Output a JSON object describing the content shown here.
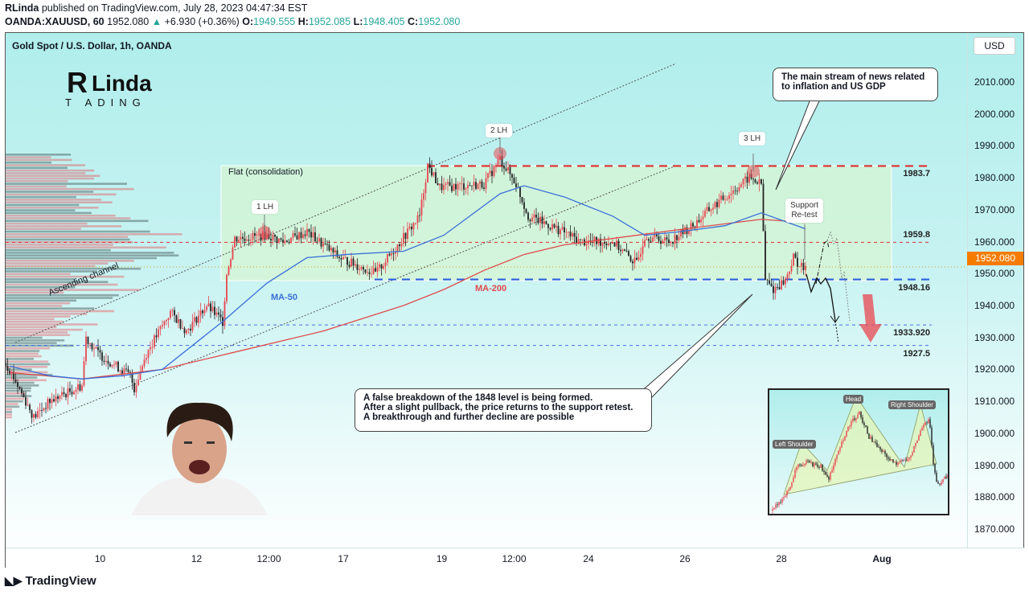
{
  "header": {
    "author": "RLinda",
    "published": "published on TradingView.com, July 28, 2023 04:47:34 EST",
    "symbol": "OANDA:XAUUSD, 60",
    "last": "1952.080",
    "change": "+6.930 (+0.36%)",
    "o_label": "O:",
    "o": "1949.555",
    "h_label": "H:",
    "h": "1952.085",
    "l_label": "L:",
    "l": "1948.405",
    "c_label": "C:",
    "c": "1952.080"
  },
  "chart_title": "Gold Spot / U.S. Dollar, 1h, OANDA",
  "currency": "USD",
  "current_price_label": "1952.080",
  "logo_text": "RLinda TRADING",
  "footer_brand": "TradingView",
  "colors": {
    "up": "#e8454f",
    "down": "#222222",
    "ma50": "#3a6fd8",
    "ma200": "#e04a4a",
    "accent": "#f57c00"
  },
  "annotations": {
    "flat": "Flat (consolidation)",
    "lh1": "1 LH",
    "lh2": "2 LH",
    "lh3": "3 LH",
    "support1": "Support",
    "support2": "Re-test",
    "channel": "Ascending channel",
    "ma50": "MA-50",
    "ma200": "MA-200",
    "news1": "The main stream of news related",
    "news2": "to inflation and US GDP",
    "breakdown1": "A false breakdown of the 1848 level is being formed.",
    "breakdown2": "After a slight pullback, the price returns to the support retest.",
    "breakdown3": "A breakthrough and further decline are possible",
    "inset_left": "Left Shoulder",
    "inset_head": "Head",
    "inset_right": "Right Shoulder"
  },
  "chart_data": {
    "type": "candlestick",
    "title": "Gold Spot / U.S. Dollar, 1h, OANDA",
    "ylim": [
      1865,
      2018
    ],
    "y_ticks": [
      "2010.000",
      "2000.000",
      "1990.000",
      "1980.000",
      "1970.000",
      "1960.000",
      "1950.000",
      "1940.000",
      "1930.000",
      "1920.000",
      "1910.000",
      "1900.000",
      "1890.000",
      "1880.000",
      "1870.000"
    ],
    "y_tick_values": [
      2010,
      2000,
      1990,
      1980,
      1970,
      1960,
      1950,
      1940,
      1930,
      1920,
      1910,
      1900,
      1890,
      1880,
      1870
    ],
    "x_ticks": [
      {
        "label": "10",
        "bar": 47,
        "bold": false
      },
      {
        "label": "12",
        "bar": 95,
        "bold": false
      },
      {
        "label": "12:00",
        "bar": 131,
        "bold": false
      },
      {
        "label": "17",
        "bar": 168,
        "bold": false
      },
      {
        "label": "19",
        "bar": 217,
        "bold": false
      },
      {
        "label": "12:00",
        "bar": 253,
        "bold": false
      },
      {
        "label": "24",
        "bar": 290,
        "bold": false
      },
      {
        "label": "26",
        "bar": 338,
        "bold": false
      },
      {
        "label": "28",
        "bar": 386,
        "bold": false
      },
      {
        "label": "Aug",
        "bar": 436,
        "bold": true
      }
    ],
    "price_path": [
      [
        0,
        1922
      ],
      [
        2,
        1920
      ],
      [
        14,
        1905
      ],
      [
        22,
        1910
      ],
      [
        38,
        1915
      ],
      [
        40,
        1930
      ],
      [
        46,
        1925
      ],
      [
        62,
        1918
      ],
      [
        64,
        1914
      ],
      [
        70,
        1925
      ],
      [
        82,
        1938
      ],
      [
        90,
        1932
      ],
      [
        100,
        1940
      ],
      [
        108,
        1935
      ],
      [
        110,
        1950
      ],
      [
        114,
        1961
      ],
      [
        130,
        1962
      ],
      [
        138,
        1960
      ],
      [
        150,
        1963
      ],
      [
        166,
        1955
      ],
      [
        184,
        1950
      ],
      [
        194,
        1958
      ],
      [
        206,
        1968
      ],
      [
        210,
        1984
      ],
      [
        216,
        1977
      ],
      [
        238,
        1978
      ],
      [
        246,
        1986
      ],
      [
        254,
        1978
      ],
      [
        260,
        1968
      ],
      [
        278,
        1963
      ],
      [
        286,
        1960
      ],
      [
        302,
        1960
      ],
      [
        314,
        1953
      ],
      [
        318,
        1962
      ],
      [
        330,
        1960
      ],
      [
        342,
        1965
      ],
      [
        350,
        1970
      ],
      [
        360,
        1975
      ],
      [
        370,
        1980
      ],
      [
        376,
        1978
      ],
      [
        378,
        1948
      ],
      [
        382,
        1945
      ],
      [
        388,
        1948
      ],
      [
        392,
        1955
      ],
      [
        396,
        1952
      ],
      [
        398,
        1951
      ]
    ],
    "ma50": [
      [
        2,
        1921
      ],
      [
        22,
        1918
      ],
      [
        38,
        1917
      ],
      [
        58,
        1918
      ],
      [
        78,
        1920
      ],
      [
        98,
        1930
      ],
      [
        108,
        1935
      ],
      [
        130,
        1947
      ],
      [
        150,
        1955
      ],
      [
        170,
        1956
      ],
      [
        198,
        1957
      ],
      [
        218,
        1962
      ],
      [
        246,
        1975
      ],
      [
        258,
        1977.5
      ],
      [
        278,
        1974
      ],
      [
        302,
        1968
      ],
      [
        318,
        1962
      ],
      [
        334,
        1963
      ],
      [
        358,
        1965
      ],
      [
        376,
        1969
      ],
      [
        398,
        1964
      ]
    ],
    "ma200": [
      [
        2,
        1919
      ],
      [
        38,
        1917
      ],
      [
        78,
        1920
      ],
      [
        118,
        1926
      ],
      [
        158,
        1932
      ],
      [
        198,
        1940
      ],
      [
        218,
        1945
      ],
      [
        238,
        1951
      ],
      [
        258,
        1956
      ],
      [
        278,
        1959
      ],
      [
        302,
        1961
      ],
      [
        338,
        1964
      ],
      [
        376,
        1967
      ],
      [
        398,
        1966
      ]
    ],
    "levels": [
      {
        "label": "1983.7",
        "value": 1983.7,
        "color": "#e03030",
        "style": "dashed-thick"
      },
      {
        "label": "1959.8",
        "value": 1959.8,
        "color": "#e03030",
        "style": "dashed"
      },
      {
        "label": "1948.16",
        "value": 1948.16,
        "color": "#2a5fe0",
        "style": "dashed-thick"
      },
      {
        "label": "1933.920",
        "value": 1933.92,
        "color": "#4a6fe0",
        "style": "dashed"
      },
      {
        "label": "1927.5",
        "value": 1927.5,
        "color": "#4a6fe0",
        "style": "dashed"
      }
    ],
    "current_price": 1952.08
  }
}
